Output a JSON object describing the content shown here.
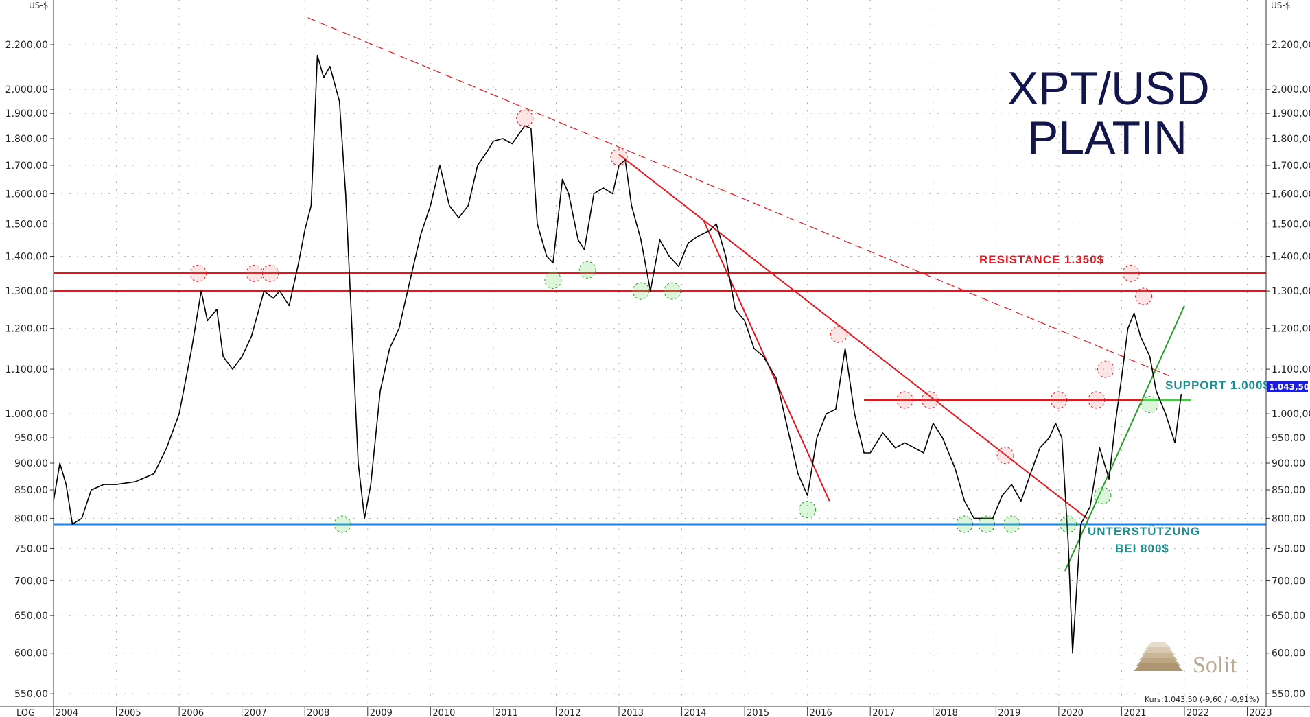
{
  "chart_data": {
    "type": "line",
    "title": "XPT/USD PLATIN",
    "title_lines": [
      "XPT/USD",
      "PLATIN"
    ],
    "scale": "log",
    "axis_unit": "US-$",
    "log_label": "LOG",
    "ylim": [
      535,
      2420
    ],
    "xlim": [
      2004.0,
      2023.3
    ],
    "grid": true,
    "y_ticks": [
      550,
      600,
      650,
      700,
      750,
      800,
      850,
      900,
      950,
      1000,
      1100,
      1200,
      1300,
      1400,
      1500,
      1600,
      1700,
      1800,
      1900,
      2000,
      2200
    ],
    "y_tick_labels": [
      "550,00",
      "600,00",
      "650,00",
      "700,00",
      "750,00",
      "800,00",
      "850,00",
      "900,00",
      "950,00",
      "1.000,00",
      "1.100,00",
      "1.200,00",
      "1.300,00",
      "1.400,00",
      "1.500,00",
      "1.600,00",
      "1.700,00",
      "1.800,00",
      "1.900,00",
      "2.000,00",
      "2.200,00"
    ],
    "x_ticks": [
      "2004",
      "2005",
      "2006",
      "2007",
      "2008",
      "2009",
      "2010",
      "2011",
      "2012",
      "2013",
      "2014",
      "2015",
      "2016",
      "2017",
      "2018",
      "2019",
      "2020",
      "2021",
      "2022",
      "2023"
    ],
    "series": [
      {
        "color": "#000000",
        "points": [
          [
            2004.0,
            830
          ],
          [
            2004.1,
            900
          ],
          [
            2004.2,
            860
          ],
          [
            2004.3,
            790
          ],
          [
            2004.45,
            800
          ],
          [
            2004.6,
            850
          ],
          [
            2004.8,
            860
          ],
          [
            2005.0,
            860
          ],
          [
            2005.3,
            865
          ],
          [
            2005.6,
            880
          ],
          [
            2005.8,
            930
          ],
          [
            2006.0,
            1000
          ],
          [
            2006.2,
            1150
          ],
          [
            2006.35,
            1300
          ],
          [
            2006.45,
            1220
          ],
          [
            2006.6,
            1250
          ],
          [
            2006.7,
            1130
          ],
          [
            2006.85,
            1100
          ],
          [
            2007.0,
            1130
          ],
          [
            2007.15,
            1180
          ],
          [
            2007.35,
            1300
          ],
          [
            2007.5,
            1280
          ],
          [
            2007.6,
            1300
          ],
          [
            2007.75,
            1260
          ],
          [
            2007.9,
            1380
          ],
          [
            2008.0,
            1480
          ],
          [
            2008.1,
            1560
          ],
          [
            2008.2,
            2150
          ],
          [
            2008.3,
            2050
          ],
          [
            2008.4,
            2100
          ],
          [
            2008.55,
            1950
          ],
          [
            2008.65,
            1600
          ],
          [
            2008.75,
            1200
          ],
          [
            2008.85,
            900
          ],
          [
            2008.95,
            800
          ],
          [
            2009.05,
            860
          ],
          [
            2009.2,
            1050
          ],
          [
            2009.35,
            1150
          ],
          [
            2009.5,
            1200
          ],
          [
            2009.7,
            1350
          ],
          [
            2009.85,
            1470
          ],
          [
            2010.0,
            1560
          ],
          [
            2010.15,
            1700
          ],
          [
            2010.3,
            1560
          ],
          [
            2010.45,
            1520
          ],
          [
            2010.6,
            1560
          ],
          [
            2010.75,
            1700
          ],
          [
            2010.9,
            1750
          ],
          [
            2011.0,
            1790
          ],
          [
            2011.15,
            1800
          ],
          [
            2011.3,
            1780
          ],
          [
            2011.5,
            1850
          ],
          [
            2011.6,
            1840
          ],
          [
            2011.7,
            1500
          ],
          [
            2011.85,
            1400
          ],
          [
            2011.95,
            1380
          ],
          [
            2012.1,
            1650
          ],
          [
            2012.2,
            1600
          ],
          [
            2012.35,
            1450
          ],
          [
            2012.45,
            1420
          ],
          [
            2012.6,
            1600
          ],
          [
            2012.75,
            1620
          ],
          [
            2012.9,
            1600
          ],
          [
            2013.0,
            1700
          ],
          [
            2013.1,
            1720
          ],
          [
            2013.2,
            1560
          ],
          [
            2013.35,
            1450
          ],
          [
            2013.5,
            1300
          ],
          [
            2013.65,
            1450
          ],
          [
            2013.8,
            1400
          ],
          [
            2013.95,
            1370
          ],
          [
            2014.1,
            1440
          ],
          [
            2014.25,
            1460
          ],
          [
            2014.45,
            1480
          ],
          [
            2014.55,
            1500
          ],
          [
            2014.7,
            1400
          ],
          [
            2014.85,
            1250
          ],
          [
            2015.0,
            1220
          ],
          [
            2015.15,
            1150
          ],
          [
            2015.3,
            1130
          ],
          [
            2015.5,
            1080
          ],
          [
            2015.7,
            960
          ],
          [
            2015.85,
            880
          ],
          [
            2016.0,
            840
          ],
          [
            2016.15,
            950
          ],
          [
            2016.3,
            1000
          ],
          [
            2016.45,
            1010
          ],
          [
            2016.6,
            1150
          ],
          [
            2016.75,
            1000
          ],
          [
            2016.9,
            920
          ],
          [
            2017.0,
            920
          ],
          [
            2017.2,
            960
          ],
          [
            2017.4,
            930
          ],
          [
            2017.55,
            940
          ],
          [
            2017.7,
            930
          ],
          [
            2017.85,
            920
          ],
          [
            2018.0,
            980
          ],
          [
            2018.15,
            950
          ],
          [
            2018.35,
            890
          ],
          [
            2018.5,
            830
          ],
          [
            2018.65,
            800
          ],
          [
            2018.8,
            800
          ],
          [
            2018.95,
            800
          ],
          [
            2019.1,
            840
          ],
          [
            2019.25,
            860
          ],
          [
            2019.4,
            830
          ],
          [
            2019.55,
            880
          ],
          [
            2019.7,
            930
          ],
          [
            2019.85,
            950
          ],
          [
            2019.95,
            980
          ],
          [
            2020.05,
            950
          ],
          [
            2020.15,
            760
          ],
          [
            2020.22,
            600
          ],
          [
            2020.35,
            790
          ],
          [
            2020.5,
            820
          ],
          [
            2020.65,
            930
          ],
          [
            2020.8,
            870
          ],
          [
            2020.9,
            980
          ],
          [
            2021.0,
            1080
          ],
          [
            2021.1,
            1200
          ],
          [
            2021.2,
            1240
          ],
          [
            2021.3,
            1180
          ],
          [
            2021.45,
            1130
          ],
          [
            2021.55,
            1050
          ],
          [
            2021.7,
            1000
          ],
          [
            2021.85,
            940
          ],
          [
            2021.95,
            1043.5
          ]
        ]
      }
    ],
    "horizontal_lines": [
      {
        "y": 1350,
        "color": "#e8141b"
      },
      {
        "y": 1300,
        "color": "#e8141b"
      },
      {
        "y": 1030,
        "x1": 2016.9,
        "x2": 2021.35,
        "color": "#e8141b"
      },
      {
        "y": 1030,
        "x1": 2021.35,
        "x2": 2022.1,
        "color": "#39d339"
      },
      {
        "y": 790,
        "color": "#1e7fe0"
      }
    ],
    "trend_lines": [
      {
        "from": [
          2008.05,
          2330
        ],
        "to": [
          2021.75,
          1085
        ],
        "color": "#e8141b",
        "dashed": true
      },
      {
        "from": [
          2013.0,
          1740
        ],
        "to": [
          2020.45,
          800
        ],
        "color": "#e8141b",
        "dashed": false
      },
      {
        "from": [
          2014.35,
          1510
        ],
        "to": [
          2016.35,
          830
        ],
        "color": "#e8141b",
        "dashed": false
      },
      {
        "from": [
          2020.1,
          715
        ],
        "to": [
          2022.0,
          1260
        ],
        "color": "#22a022",
        "dashed": false
      }
    ],
    "markers_resistance": [
      [
        2006.3,
        1350
      ],
      [
        2007.2,
        1350
      ],
      [
        2007.45,
        1350
      ],
      [
        2011.5,
        1880
      ],
      [
        2013.0,
        1730
      ],
      [
        2016.5,
        1185
      ],
      [
        2017.55,
        1030
      ],
      [
        2017.95,
        1030
      ],
      [
        2019.15,
        915
      ],
      [
        2020.0,
        1030
      ],
      [
        2020.6,
        1030
      ],
      [
        2021.15,
        1350
      ],
      [
        2021.35,
        1285
      ],
      [
        2020.75,
        1100
      ]
    ],
    "markers_support": [
      [
        2008.6,
        790
      ],
      [
        2011.95,
        1330
      ],
      [
        2012.5,
        1360
      ],
      [
        2013.35,
        1300
      ],
      [
        2013.85,
        1300
      ],
      [
        2016.0,
        815
      ],
      [
        2018.5,
        790
      ],
      [
        2018.85,
        790
      ],
      [
        2019.25,
        790
      ],
      [
        2020.15,
        790
      ],
      [
        2020.7,
        840
      ],
      [
        2021.45,
        1020
      ]
    ],
    "annotations": {
      "resistance": "RESISTANCE 1.350$",
      "support": "SUPPORT 1.000$",
      "unterstuetzung_line1": "UNTERSTÜTZUNG",
      "unterstuetzung_line2": "BEI 800$"
    },
    "last_price_tag": "1.043,50",
    "kurs_text": "Kurs:1.043,50 (-9,60 / -0,91%)",
    "brand": "Solit",
    "colors": {
      "resistance": "#e8141b",
      "support_green": "#39d339",
      "support_blue": "#1e7fe0",
      "title": "#13164a",
      "price_tag": "#1c1cdc"
    }
  }
}
